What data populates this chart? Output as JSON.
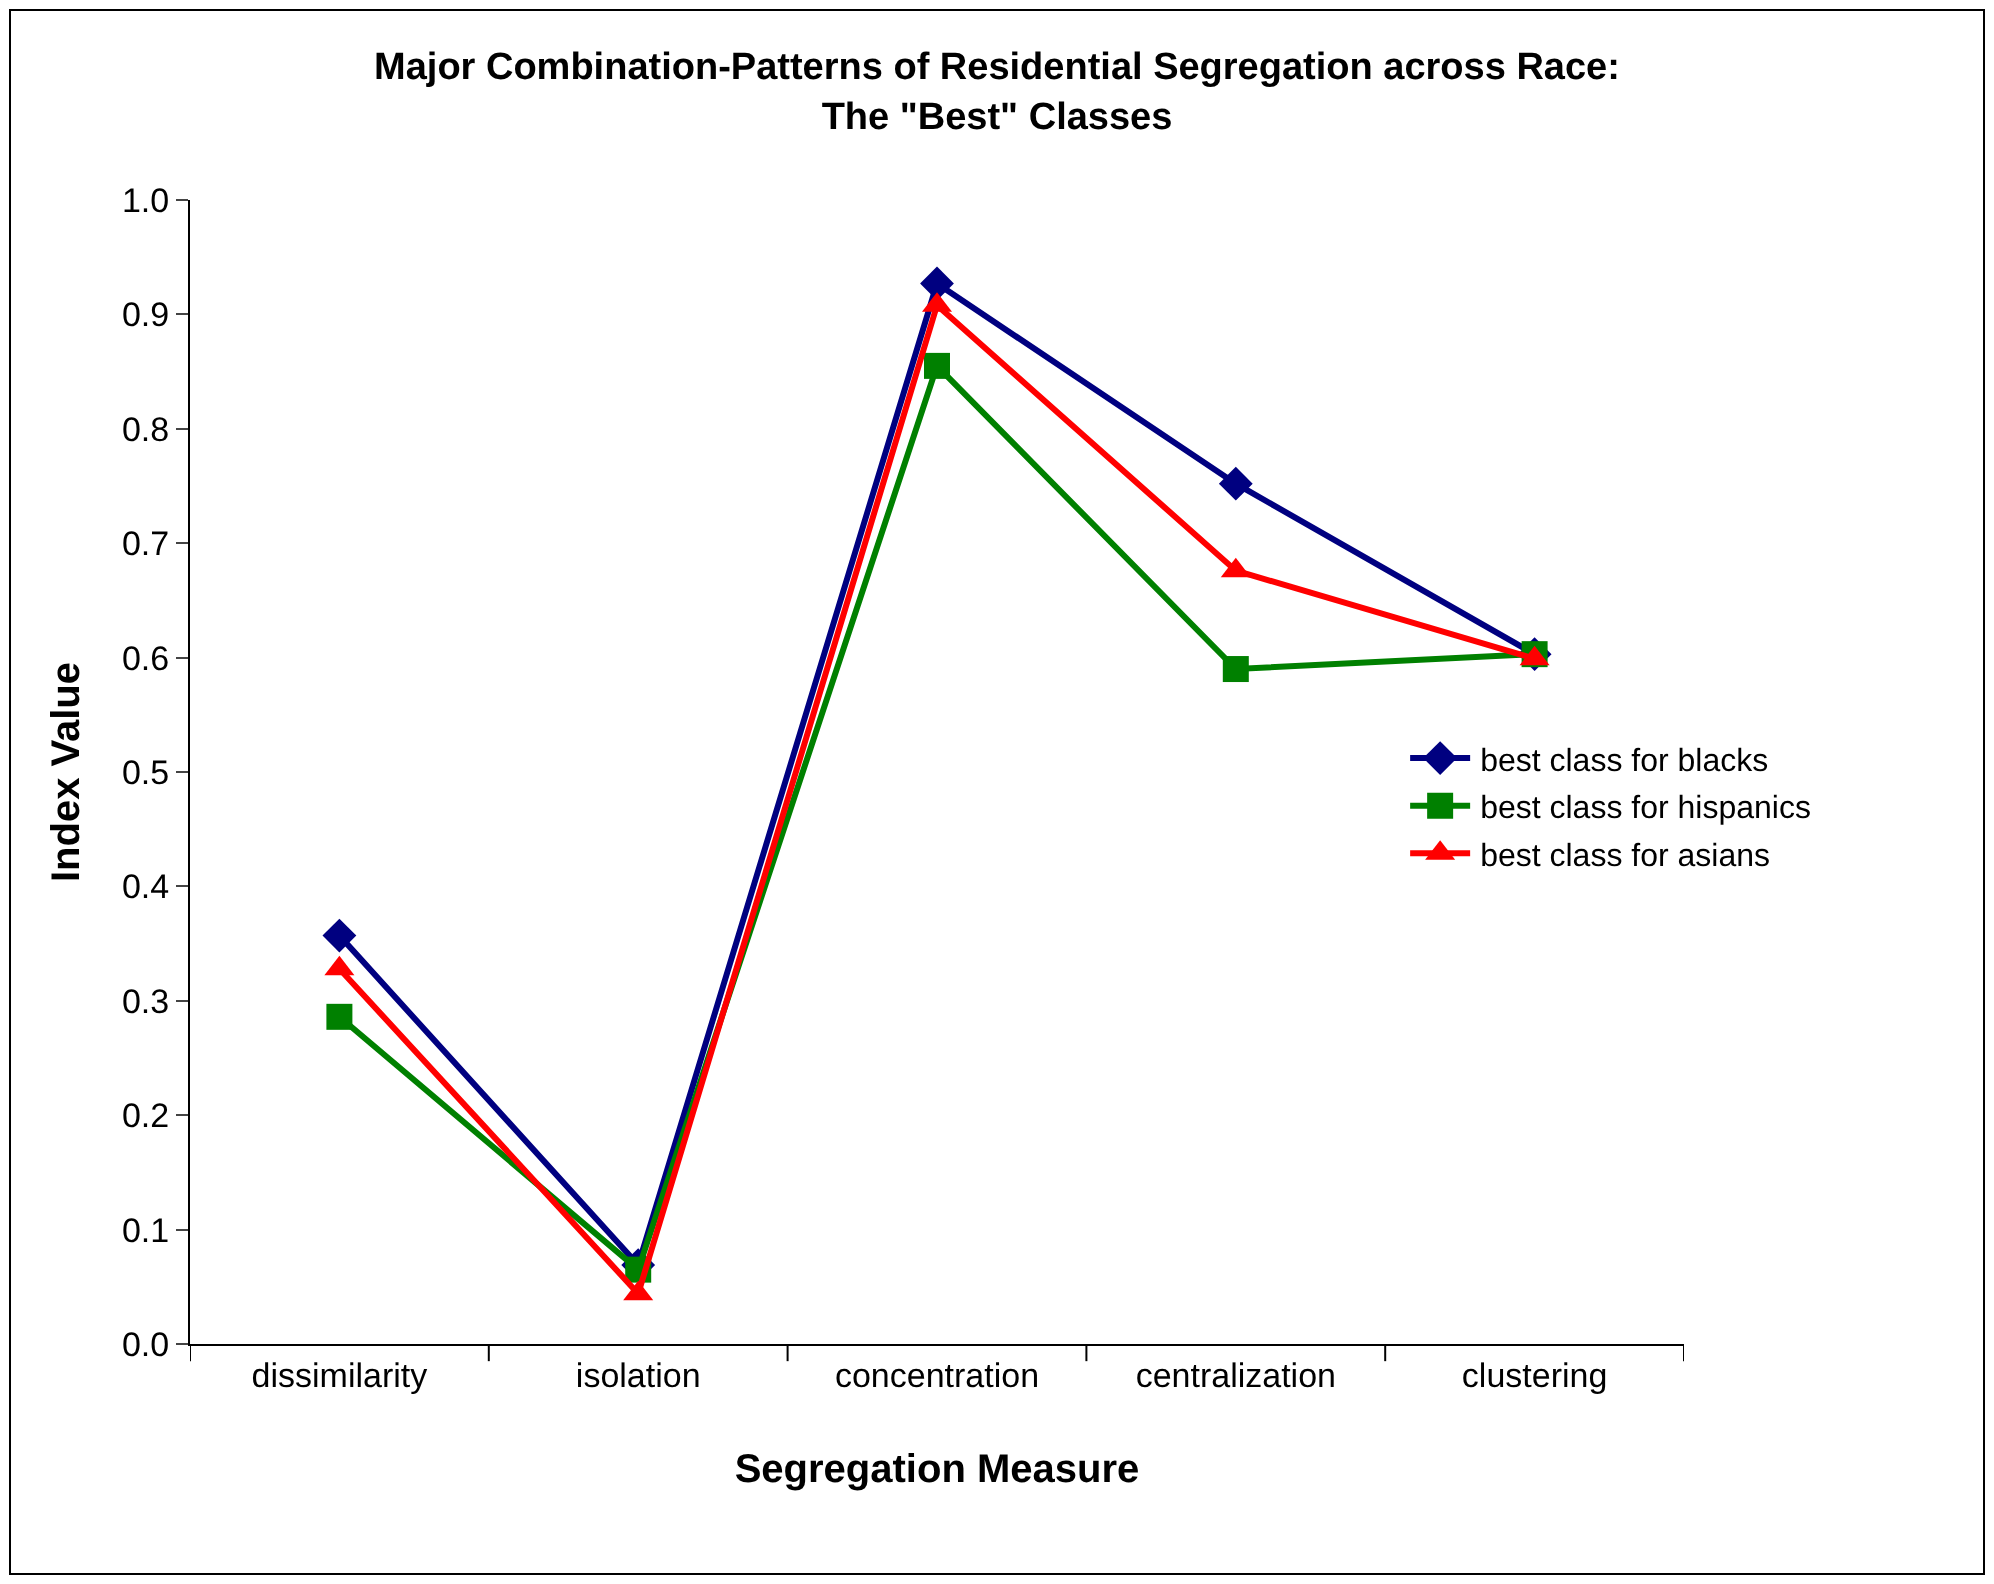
{
  "chart_data": {
    "type": "line",
    "title": "Major Combination-Patterns of Residential Segregation across Race:\nThe \"Best\" Classes",
    "xlabel": "Segregation Measure",
    "ylabel": "Index Value",
    "categories": [
      "dissimilarity",
      "isolation",
      "concentration",
      "centralization",
      "clustering"
    ],
    "series": [
      {
        "name": "best class for blacks",
        "color": "#000080",
        "marker": "diamond",
        "values": [
          0.357,
          0.069,
          0.927,
          0.752,
          0.603
        ]
      },
      {
        "name": "best class for hispanics",
        "color": "#008000",
        "marker": "square",
        "values": [
          0.286,
          0.065,
          0.855,
          0.59,
          0.603
        ]
      },
      {
        "name": "best class for asians",
        "color": "#ff0000",
        "marker": "triangle",
        "values": [
          0.328,
          0.044,
          0.908,
          0.676,
          0.599
        ]
      }
    ],
    "ylim": [
      0,
      1
    ],
    "yticks": [
      {
        "value": 0,
        "label": "0.0"
      },
      {
        "value": 0.1,
        "label": "0.1"
      },
      {
        "value": 0.2,
        "label": "0.2"
      },
      {
        "value": 0.3,
        "label": "0.3"
      },
      {
        "value": 0.4,
        "label": "0.4"
      },
      {
        "value": 0.5,
        "label": "0.5"
      },
      {
        "value": 0.6,
        "label": "0.6"
      },
      {
        "value": 0.7,
        "label": "0.7"
      },
      {
        "value": 0.8,
        "label": "0.8"
      },
      {
        "value": 0.9,
        "label": "0.9"
      },
      {
        "value": 1,
        "label": "1.0"
      }
    ],
    "legend": "right",
    "line_style": "solid"
  }
}
